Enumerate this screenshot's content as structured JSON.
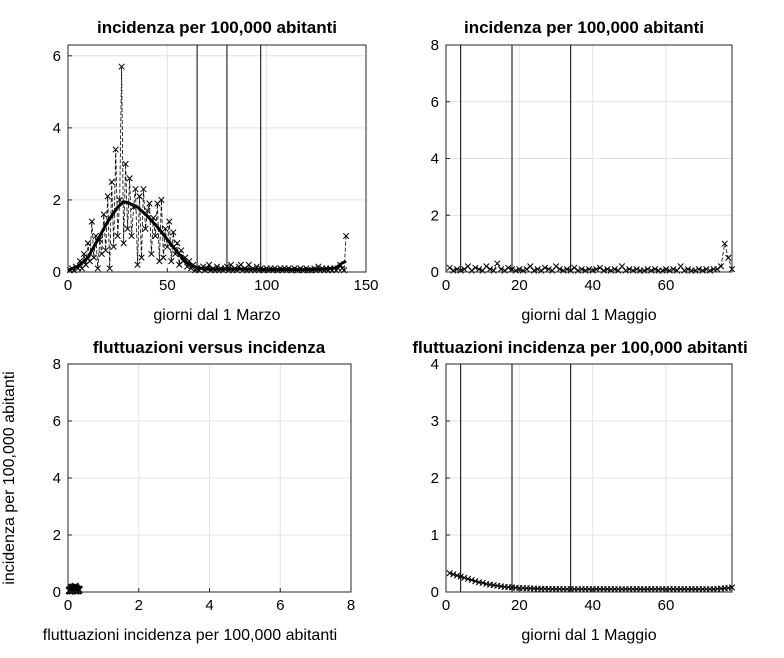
{
  "chart_data": [
    {
      "id": "p1",
      "type": "line",
      "title": "incidenza per 100,000 abitanti",
      "xlabel": "giorni dal 1 Marzo",
      "ylabel": "",
      "xlim": [
        0,
        150
      ],
      "ylim": [
        0,
        6.3
      ],
      "xticks": [
        0,
        50,
        100,
        150
      ],
      "yticks": [
        0,
        2,
        4,
        6
      ],
      "grid": true,
      "vlines": [
        65,
        80,
        97
      ],
      "series": [
        {
          "style": "dashed-with-x-markers",
          "x": [
            1,
            2,
            3,
            4,
            5,
            6,
            7,
            8,
            9,
            10,
            11,
            12,
            13,
            14,
            15,
            16,
            17,
            18,
            19,
            20,
            21,
            22,
            23,
            24,
            25,
            26,
            27,
            28,
            29,
            30,
            31,
            32,
            33,
            34,
            35,
            36,
            37,
            38,
            39,
            40,
            41,
            42,
            43,
            44,
            45,
            46,
            47,
            48,
            49,
            50,
            51,
            52,
            53,
            54,
            55,
            56,
            57,
            58,
            59,
            60,
            61,
            62,
            63,
            64,
            65,
            66,
            67,
            68,
            69,
            70,
            71,
            72,
            73,
            74,
            75,
            76,
            77,
            78,
            79,
            80,
            81,
            82,
            83,
            84,
            85,
            86,
            87,
            88,
            89,
            90,
            91,
            92,
            93,
            94,
            95,
            96,
            97,
            98,
            99,
            100,
            101,
            102,
            103,
            104,
            105,
            106,
            107,
            108,
            109,
            110,
            111,
            112,
            113,
            114,
            115,
            116,
            117,
            118,
            119,
            120,
            121,
            122,
            123,
            124,
            125,
            126,
            127,
            128,
            129,
            130,
            131,
            132,
            133,
            134,
            135,
            136,
            137,
            138,
            139,
            140
          ],
          "y": [
            0.05,
            0.1,
            0.05,
            0.15,
            0.1,
            0.3,
            0.1,
            0.5,
            0.2,
            0.8,
            0.3,
            1.4,
            0.4,
            1.0,
            0.1,
            0.9,
            0.5,
            1.6,
            0.6,
            2.1,
            0.1,
            2.5,
            0.7,
            3.4,
            1.0,
            2.0,
            5.7,
            0.8,
            3.0,
            1.2,
            2.6,
            1.0,
            1.8,
            2.3,
            0.2,
            2.1,
            0.4,
            2.3,
            1.2,
            1.7,
            1.9,
            0.5,
            1.5,
            1.0,
            1.9,
            0.3,
            2.0,
            0.4,
            1.2,
            0.7,
            1.4,
            0.3,
            1.1,
            0.5,
            0.8,
            0.2,
            0.6,
            0.3,
            0.4,
            0.15,
            0.3,
            0.1,
            0.2,
            0.05,
            0.1,
            0.05,
            0.1,
            0.15,
            0.05,
            0.1,
            0.2,
            0.05,
            0.1,
            0.05,
            0.15,
            0.05,
            0.1,
            0.05,
            0.1,
            0.15,
            0.05,
            0.2,
            0.05,
            0.1,
            0.05,
            0.15,
            0.2,
            0.05,
            0.1,
            0.05,
            0.2,
            0.05,
            0.1,
            0.05,
            0.15,
            0.05,
            0.1,
            0.05,
            0.05,
            0.1,
            0.05,
            0.1,
            0.05,
            0.1,
            0.05,
            0.05,
            0.1,
            0.05,
            0.1,
            0.05,
            0.1,
            0.05,
            0.05,
            0.1,
            0.05,
            0.05,
            0.1,
            0.05,
            0.05,
            0.1,
            0.05,
            0.05,
            0.05,
            0.1,
            0.05,
            0.15,
            0.05,
            0.1,
            0.05,
            0.1,
            0.05,
            0.1,
            0.05,
            0.1,
            0.05,
            0.1,
            0.2,
            0.1,
            0.05,
            1.0
          ]
        },
        {
          "style": "smooth-thick",
          "x": [
            0,
            5,
            10,
            15,
            20,
            25,
            28,
            30,
            35,
            40,
            45,
            50,
            55,
            60,
            65,
            70,
            80,
            90,
            100,
            110,
            120,
            130,
            135,
            138,
            140
          ],
          "y": [
            0.05,
            0.15,
            0.4,
            0.9,
            1.4,
            1.8,
            1.95,
            1.93,
            1.8,
            1.55,
            1.25,
            0.9,
            0.55,
            0.25,
            0.12,
            0.08,
            0.08,
            0.08,
            0.07,
            0.07,
            0.07,
            0.08,
            0.12,
            0.25,
            0.3
          ]
        }
      ]
    },
    {
      "id": "p2",
      "type": "line",
      "title": "incidenza per 100,000 abitanti",
      "xlabel": "giorni dal 1 Maggio",
      "ylabel": "",
      "xlim": [
        0,
        78
      ],
      "ylim": [
        0,
        8
      ],
      "xticks": [
        0,
        20,
        40,
        60
      ],
      "yticks": [
        0,
        2,
        4,
        6,
        8
      ],
      "grid": true,
      "vlines": [
        4,
        18,
        34
      ],
      "series": [
        {
          "style": "dashed-with-x-markers",
          "x": [
            1,
            2,
            3,
            4,
            5,
            6,
            7,
            8,
            9,
            10,
            11,
            12,
            13,
            14,
            15,
            16,
            17,
            18,
            19,
            20,
            21,
            22,
            23,
            24,
            25,
            26,
            27,
            28,
            29,
            30,
            31,
            32,
            33,
            34,
            35,
            36,
            37,
            38,
            39,
            40,
            41,
            42,
            43,
            44,
            45,
            46,
            47,
            48,
            49,
            50,
            51,
            52,
            53,
            54,
            55,
            56,
            57,
            58,
            59,
            60,
            61,
            62,
            63,
            64,
            65,
            66,
            67,
            68,
            69,
            70,
            71,
            72,
            73,
            74,
            75,
            76,
            77,
            78
          ],
          "y": [
            0.15,
            0.05,
            0.1,
            0.05,
            0.1,
            0.2,
            0.05,
            0.15,
            0.1,
            0.05,
            0.2,
            0.1,
            0.05,
            0.3,
            0.1,
            0.05,
            0.15,
            0.1,
            0.05,
            0.1,
            0.05,
            0.1,
            0.2,
            0.05,
            0.1,
            0.05,
            0.15,
            0.1,
            0.05,
            0.2,
            0.1,
            0.05,
            0.1,
            0.05,
            0.15,
            0.05,
            0.1,
            0.05,
            0.1,
            0.05,
            0.1,
            0.15,
            0.05,
            0.1,
            0.05,
            0.1,
            0.05,
            0.2,
            0.05,
            0.1,
            0.05,
            0.1,
            0.05,
            0.05,
            0.1,
            0.05,
            0.1,
            0.05,
            0.05,
            0.1,
            0.05,
            0.1,
            0.05,
            0.2,
            0.05,
            0.1,
            0.05,
            0.05,
            0.1,
            0.05,
            0.1,
            0.05,
            0.1,
            0.1,
            0.2,
            1.0,
            0.5,
            0.1
          ]
        }
      ]
    },
    {
      "id": "p3",
      "type": "scatter",
      "title": "fluttuazioni versus incidenza",
      "xlabel": "fluttuazioni incidenza per 100,000 abitanti",
      "ylabel": "incidenza per 100,000 abitanti",
      "xlim": [
        0,
        8
      ],
      "ylim": [
        0,
        8
      ],
      "xticks": [
        0,
        2,
        4,
        6,
        8
      ],
      "yticks": [
        0,
        2,
        4,
        6,
        8
      ],
      "grid": true,
      "vlines": [],
      "series": [
        {
          "style": "x-markers-bold",
          "x": [
            0.05,
            0.08,
            0.1,
            0.12,
            0.15,
            0.18,
            0.2,
            0.22,
            0.25,
            0.28,
            0.3,
            0.12,
            0.2
          ],
          "y": [
            0.05,
            0.08,
            0.1,
            0.05,
            0.12,
            0.08,
            0.1,
            0.05,
            0.1,
            0.06,
            0.08,
            0.15,
            0.18
          ]
        }
      ]
    },
    {
      "id": "p4",
      "type": "line",
      "title": "fluttuazioni incidenza per 100,000 abitanti",
      "xlabel": "giorni dal 1 Maggio",
      "ylabel": "",
      "xlim": [
        0,
        78
      ],
      "ylim": [
        0,
        4
      ],
      "xticks": [
        0,
        20,
        40,
        60
      ],
      "yticks": [
        0,
        1,
        2,
        3,
        4
      ],
      "grid": true,
      "vlines": [
        4,
        18,
        34
      ],
      "series": [
        {
          "style": "solid-with-x-markers",
          "x": [
            1,
            2,
            3,
            4,
            5,
            6,
            7,
            8,
            9,
            10,
            11,
            12,
            13,
            14,
            15,
            16,
            17,
            18,
            19,
            20,
            21,
            22,
            23,
            24,
            25,
            26,
            27,
            28,
            29,
            30,
            31,
            32,
            33,
            34,
            35,
            36,
            37,
            38,
            39,
            40,
            41,
            42,
            43,
            44,
            45,
            46,
            47,
            48,
            49,
            50,
            51,
            52,
            53,
            54,
            55,
            56,
            57,
            58,
            59,
            60,
            61,
            62,
            63,
            64,
            65,
            66,
            67,
            68,
            69,
            70,
            71,
            72,
            73,
            74,
            75,
            76,
            77,
            78
          ],
          "y": [
            0.33,
            0.31,
            0.29,
            0.27,
            0.25,
            0.23,
            0.21,
            0.19,
            0.17,
            0.16,
            0.14,
            0.13,
            0.12,
            0.11,
            0.1,
            0.09,
            0.085,
            0.08,
            0.075,
            0.07,
            0.068,
            0.065,
            0.062,
            0.06,
            0.058,
            0.056,
            0.055,
            0.054,
            0.053,
            0.052,
            0.051,
            0.05,
            0.05,
            0.05,
            0.05,
            0.05,
            0.05,
            0.05,
            0.05,
            0.05,
            0.05,
            0.05,
            0.05,
            0.05,
            0.05,
            0.05,
            0.05,
            0.05,
            0.05,
            0.05,
            0.05,
            0.05,
            0.05,
            0.05,
            0.05,
            0.05,
            0.05,
            0.05,
            0.05,
            0.05,
            0.05,
            0.05,
            0.05,
            0.05,
            0.05,
            0.05,
            0.05,
            0.05,
            0.05,
            0.05,
            0.05,
            0.05,
            0.05,
            0.055,
            0.06,
            0.065,
            0.07,
            0.08
          ]
        }
      ]
    }
  ]
}
